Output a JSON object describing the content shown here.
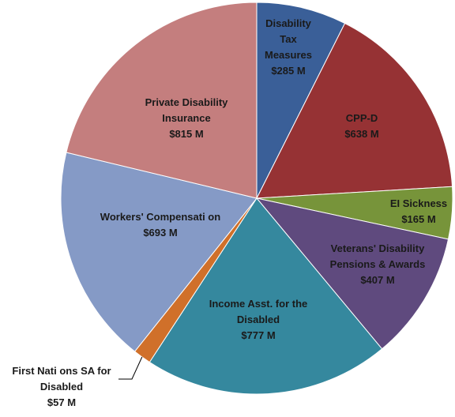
{
  "chart_data": {
    "type": "pie",
    "start_angle_deg": 0,
    "slices": [
      {
        "label_lines": [
          "Disability",
          "Tax",
          "Measures"
        ],
        "value_text": "$285 M",
        "value": 285,
        "color": "#3a5f98"
      },
      {
        "label_lines": [
          "CPP-D"
        ],
        "value_text": "$638 M",
        "value": 638,
        "color": "#963234"
      },
      {
        "label_lines": [
          "EI Sickness"
        ],
        "value_text": "$165 M",
        "value": 165,
        "color": "#77943a"
      },
      {
        "label_lines": [
          "Veterans' Disability",
          "Pensions & Awards"
        ],
        "value_text": "$407 M",
        "value": 407,
        "color": "#5f4a7e"
      },
      {
        "label_lines": [
          "Income Asst. for the",
          "Disabled"
        ],
        "value_text": "$777 M",
        "value": 777,
        "color": "#35889e"
      },
      {
        "label_lines": [
          "First Nati  ons SA for",
          "Disabled"
        ],
        "value_text": "$57 M",
        "value": 57,
        "color": "#d0702a"
      },
      {
        "label_lines": [
          "Workers' Compensati   on"
        ],
        "value_text": "$693 M",
        "value": 693,
        "color": "#859ac6"
      },
      {
        "label_lines": [
          "Private Disability",
          "Insurance"
        ],
        "value_text": "$815 M",
        "value": 815,
        "color": "#c47e7e"
      }
    ]
  }
}
